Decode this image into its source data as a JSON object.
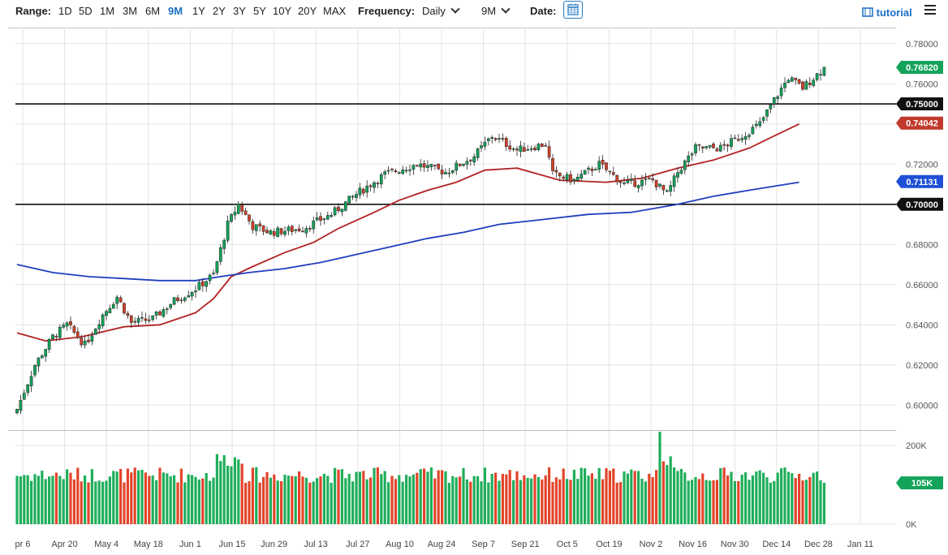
{
  "toolbar": {
    "range_label": "Range:",
    "ranges": [
      "1D",
      "5D",
      "1M",
      "3M",
      "6M",
      "9M",
      "1Y",
      "2Y",
      "3Y",
      "5Y",
      "10Y",
      "20Y",
      "MAX"
    ],
    "active_range": "9M",
    "frequency_label": "Frequency:",
    "frequency_value": "Daily",
    "period_value": "9M",
    "date_label": "Date:",
    "tutorial_label": "tutorial",
    "colors": {
      "active": "#1a6fc4"
    }
  },
  "chart_data": {
    "type": "candlestick",
    "x_ticks": [
      "pr 6",
      "Apr 20",
      "May 4",
      "May 18",
      "Jun 1",
      "Jun 15",
      "Jun 29",
      "Jul 13",
      "Jul 27",
      "Aug 10",
      "Aug 24",
      "Sep 7",
      "Sep 21",
      "Oct 5",
      "Oct 19",
      "Nov 2",
      "Nov 16",
      "Nov 30",
      "Dec 14",
      "Dec 28",
      "Jan 11"
    ],
    "price_ticks": [
      "0.78000",
      "0.76000",
      "0.74000",
      "0.72000",
      "0.70000",
      "0.68000",
      "0.66000",
      "0.64000",
      "0.62000",
      "0.60000"
    ],
    "price_range": [
      0.59,
      0.788
    ],
    "volume_ticks": [
      "200K",
      "0K"
    ],
    "volume_range": [
      0,
      235000
    ],
    "horizontal_levels": [
      {
        "value": 0.75,
        "label": "0.75000"
      },
      {
        "value": 0.7,
        "label": "0.70000"
      }
    ],
    "price_badges": [
      {
        "label": "0.76820",
        "value": 0.7682,
        "color": "#13a35a"
      },
      {
        "label": "0.74042",
        "value": 0.74042,
        "color": "#c0392b"
      },
      {
        "label": "0.71131",
        "value": 0.71131,
        "color": "#1f4fd6"
      }
    ],
    "volume_badge": {
      "label": "105K",
      "value": 105000,
      "color": "#13a35a"
    },
    "ma_red": {
      "color": "#b22222",
      "points": [
        [
          0,
          0.636
        ],
        [
          8,
          0.632
        ],
        [
          18,
          0.634
        ],
        [
          30,
          0.639
        ],
        [
          40,
          0.64
        ],
        [
          50,
          0.646
        ],
        [
          55,
          0.653
        ],
        [
          60,
          0.664
        ],
        [
          66,
          0.669
        ],
        [
          75,
          0.676
        ],
        [
          83,
          0.681
        ],
        [
          90,
          0.688
        ],
        [
          100,
          0.696
        ],
        [
          107,
          0.702
        ],
        [
          115,
          0.707
        ],
        [
          123,
          0.711
        ],
        [
          131,
          0.717
        ],
        [
          140,
          0.718
        ],
        [
          152,
          0.712
        ],
        [
          165,
          0.711
        ],
        [
          175,
          0.713
        ],
        [
          185,
          0.718
        ],
        [
          195,
          0.722
        ],
        [
          205,
          0.728
        ],
        [
          212,
          0.734
        ],
        [
          219,
          0.74
        ]
      ]
    },
    "ma_blue": {
      "color": "#1f3fbf",
      "points": [
        [
          0,
          0.67
        ],
        [
          10,
          0.666
        ],
        [
          20,
          0.664
        ],
        [
          30,
          0.663
        ],
        [
          40,
          0.662
        ],
        [
          50,
          0.662
        ],
        [
          57,
          0.664
        ],
        [
          65,
          0.666
        ],
        [
          75,
          0.668
        ],
        [
          85,
          0.671
        ],
        [
          95,
          0.675
        ],
        [
          105,
          0.679
        ],
        [
          115,
          0.683
        ],
        [
          125,
          0.686
        ],
        [
          135,
          0.69
        ],
        [
          145,
          0.692
        ],
        [
          160,
          0.695
        ],
        [
          172,
          0.696
        ],
        [
          185,
          0.7
        ],
        [
          195,
          0.704
        ],
        [
          205,
          0.707
        ],
        [
          212,
          0.709
        ],
        [
          219,
          0.711
        ]
      ]
    },
    "anchors": [
      [
        0,
        0.598
      ],
      [
        5,
        0.62
      ],
      [
        10,
        0.634
      ],
      [
        14,
        0.64
      ],
      [
        19,
        0.63
      ],
      [
        24,
        0.645
      ],
      [
        28,
        0.654
      ],
      [
        32,
        0.641
      ],
      [
        38,
        0.643
      ],
      [
        44,
        0.652
      ],
      [
        50,
        0.658
      ],
      [
        55,
        0.665
      ],
      [
        59,
        0.69
      ],
      [
        62,
        0.7
      ],
      [
        66,
        0.689
      ],
      [
        71,
        0.686
      ],
      [
        80,
        0.688
      ],
      [
        88,
        0.695
      ],
      [
        95,
        0.705
      ],
      [
        103,
        0.715
      ],
      [
        112,
        0.72
      ],
      [
        120,
        0.716
      ],
      [
        128,
        0.724
      ],
      [
        133,
        0.734
      ],
      [
        140,
        0.727
      ],
      [
        148,
        0.73
      ],
      [
        150,
        0.715
      ],
      [
        156,
        0.712
      ],
      [
        163,
        0.72
      ],
      [
        170,
        0.71
      ],
      [
        178,
        0.712
      ],
      [
        182,
        0.705
      ],
      [
        185,
        0.716
      ],
      [
        190,
        0.728
      ],
      [
        197,
        0.728
      ],
      [
        203,
        0.734
      ],
      [
        208,
        0.74
      ],
      [
        212,
        0.752
      ],
      [
        216,
        0.763
      ],
      [
        220,
        0.758
      ],
      [
        226,
        0.768
      ]
    ]
  }
}
